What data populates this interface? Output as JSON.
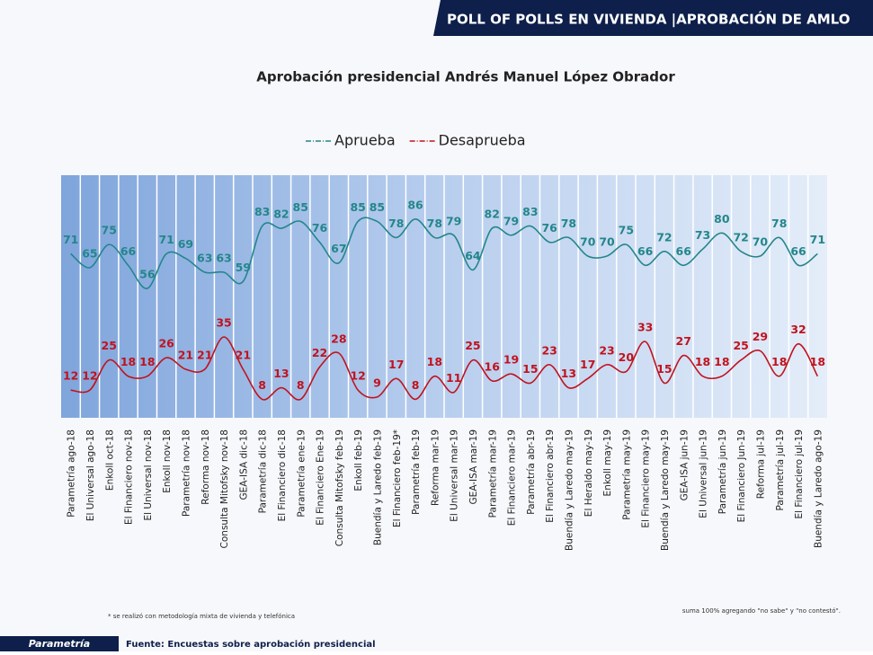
{
  "header": {
    "title": "POLL OF POLLS EN VIVIENDA |APROBACIÓN DE AMLO"
  },
  "chart_data": {
    "type": "line",
    "title": "Aprobación presidencial Andrés Manuel López Obrador",
    "categories": [
      "Parametría ago-18",
      "El Universal ago-18",
      "Enkoll oct-18",
      "El Financiero nov-18",
      "El Universal nov-18",
      "Enkoll nov-18",
      "Parametría nov-18",
      "Reforma nov-18",
      "Consulta Mitofsky nov-18",
      "GEA-ISA dic-18",
      "Parametría dic-18",
      "El Financiero dic-18",
      "Parametría ene-19",
      "El Financiero Ene-19",
      "Consulta Mitofsky feb-19",
      "Enkoll feb-19",
      "Buendía y Laredo feb-19",
      "El Financiero feb-19*",
      "Parametría feb-19",
      "Reforma mar-19",
      "El Universal mar-19",
      "GEA-ISA mar-19",
      "Parametría mar-19",
      "El Financiero mar-19",
      "Parametría abr-19",
      "El Financiero abr-19",
      "Buendía y Laredo may-19",
      "El Heraldo may-19",
      "Enkoll may-19",
      "Parametría may-19",
      "El Financiero may-19",
      "Buendía y Laredo may-19",
      "GEA-ISA jun-19",
      "El Universal jun-19",
      "Parametría jun-19",
      "El Financiero Jun-19",
      "Reforma jul-19",
      "Parametría jul-19",
      "El Financiero jul-19",
      "Buendía y Laredo ago-19"
    ],
    "series": [
      {
        "name": "Aprueba",
        "color": "#23868a",
        "values": [
          71,
          65,
          75,
          66,
          56,
          71,
          69,
          63,
          63,
          59,
          83,
          82,
          85,
          76,
          67,
          85,
          85,
          78,
          86,
          78,
          79,
          64,
          82,
          79,
          83,
          76,
          78,
          70,
          70,
          75,
          66,
          72,
          66,
          73,
          80,
          72,
          70,
          78,
          66,
          71
        ]
      },
      {
        "name": "Desaprueba",
        "color": "#c0131e",
        "values": [
          12,
          12,
          25,
          18,
          18,
          26,
          21,
          21,
          35,
          21,
          8,
          13,
          8,
          22,
          28,
          12,
          9,
          17,
          8,
          18,
          11,
          25,
          16,
          19,
          15,
          23,
          13,
          17,
          23,
          20,
          33,
          15,
          27,
          18,
          18,
          25,
          29,
          18,
          32,
          18
        ]
      }
    ],
    "ylim": [
      0,
      105
    ],
    "notes": [
      "* se realizó con metodología mixta de vivienda y telefónica",
      "suma 100% agregando \"no sabe\" y \"no contestó\"."
    ]
  },
  "footer": {
    "brand": "Parametría",
    "source": "Fuente: Encuestas sobre aprobación presidencial"
  }
}
